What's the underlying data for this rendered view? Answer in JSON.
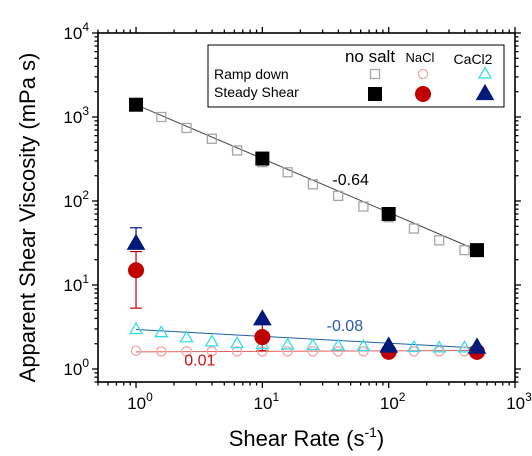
{
  "chart_data": {
    "type": "scatter",
    "title": "",
    "xlabel": "Shear Rate (s",
    "xlabel_sup": "-1",
    "xlabel_tail": ")",
    "ylabel": "Apparent Shear Viscosity (mPa s)",
    "x_scale": "log",
    "y_scale": "log",
    "xlim": [
      0.5,
      1000
    ],
    "ylim": [
      0.7,
      10000
    ],
    "x_ticks": [
      {
        "base": "10",
        "exp": "0",
        "value": 1
      },
      {
        "base": "10",
        "exp": "1",
        "value": 10
      },
      {
        "base": "10",
        "exp": "2",
        "value": 100
      },
      {
        "base": "10",
        "exp": "3",
        "value": 1000
      }
    ],
    "y_ticks": [
      {
        "base": "10",
        "exp": "0",
        "value": 1
      },
      {
        "base": "10",
        "exp": "1",
        "value": 10
      },
      {
        "base": "10",
        "exp": "2",
        "value": 100
      },
      {
        "base": "10",
        "exp": "3",
        "value": 1000
      },
      {
        "base": "10",
        "exp": "4",
        "value": 10000
      }
    ],
    "grid": false,
    "legend": {
      "placement": "top-right",
      "column_headers": [
        "no salt",
        "NaCl",
        "CaCl2"
      ],
      "row_labels": [
        "Ramp down",
        "Steady Shear"
      ]
    },
    "series": [
      {
        "name": "Ramp down, no salt",
        "marker": "square-open",
        "color": "#a6a6a6",
        "x": [
          1,
          1.585,
          2.512,
          3.981,
          6.31,
          10,
          15.85,
          25.12,
          39.81,
          63.1,
          100,
          158.5,
          251.2,
          398.1
        ],
        "y": [
          1410,
          1000,
          740,
          550,
          400,
          290,
          220,
          158,
          115,
          86,
          64,
          47,
          34,
          26
        ]
      },
      {
        "name": "Ramp down, NaCl",
        "marker": "circle-open",
        "color": "#f2a7a7",
        "x": [
          1,
          1.585,
          2.512,
          3.981,
          6.31,
          10,
          15.85,
          25.12,
          39.81,
          63.1,
          100,
          158.5,
          251.2,
          398.1,
          500
        ],
        "y": [
          1.65,
          1.62,
          1.62,
          1.62,
          1.62,
          1.62,
          1.62,
          1.62,
          1.62,
          1.62,
          1.62,
          1.62,
          1.62,
          1.62,
          1.62
        ]
      },
      {
        "name": "Ramp down, CaCl2",
        "marker": "triangle-open",
        "color": "#33e0e8",
        "x": [
          1,
          1.585,
          2.512,
          3.981,
          6.31,
          10,
          15.85,
          25.12,
          39.81,
          63.1,
          100,
          158.5,
          251.2,
          398.1,
          500
        ],
        "y": [
          2.95,
          2.7,
          2.35,
          2.1,
          2.0,
          1.95,
          1.92,
          1.9,
          1.88,
          1.85,
          1.82,
          1.8,
          1.78,
          1.78,
          1.78
        ]
      },
      {
        "name": "Steady Shear, no salt",
        "marker": "square-filled",
        "color": "#000000",
        "x": [
          1,
          10,
          100,
          500
        ],
        "y": [
          1400,
          320,
          70,
          26
        ]
      },
      {
        "name": "Steady Shear, NaCl",
        "marker": "circle-filled",
        "color": "#c00000",
        "x": [
          1,
          10,
          100,
          500
        ],
        "y": [
          15,
          2.4,
          1.6,
          1.6
        ],
        "error_low": [
          5.3,
          1.65,
          null,
          null
        ],
        "error_high": [
          25,
          3.5,
          null,
          null
        ]
      },
      {
        "name": "Steady Shear, CaCl2",
        "marker": "triangle-filled",
        "color": "#001a7a",
        "x": [
          1,
          10,
          100,
          500
        ],
        "y": [
          31,
          3.9,
          1.85,
          1.8
        ],
        "error_low": [
          null,
          null,
          null,
          null
        ],
        "error_high": [
          48,
          null,
          null,
          null
        ]
      }
    ],
    "fit_lines": [
      {
        "series": "Ramp down, no salt",
        "x": [
          1,
          500
        ],
        "y": [
          1400,
          26
        ],
        "color": "#444444"
      },
      {
        "series": "Ramp down, NaCl",
        "x": [
          1,
          500
        ],
        "y": [
          1.6,
          1.66
        ],
        "color": "#e06060"
      },
      {
        "series": "Ramp down, CaCl2",
        "x": [
          1,
          500
        ],
        "y": [
          2.95,
          1.78
        ],
        "color": "#2060a0"
      }
    ],
    "annotations": [
      {
        "text": "-0.64",
        "color": "#000000",
        "x": 50,
        "y": 155
      },
      {
        "text": "-0.08",
        "color": "#2a5d9f",
        "x": 45,
        "y": 2.85
      },
      {
        "text": "0.01",
        "color": "#d01010",
        "x": 3.2,
        "y": 1.1
      }
    ]
  }
}
